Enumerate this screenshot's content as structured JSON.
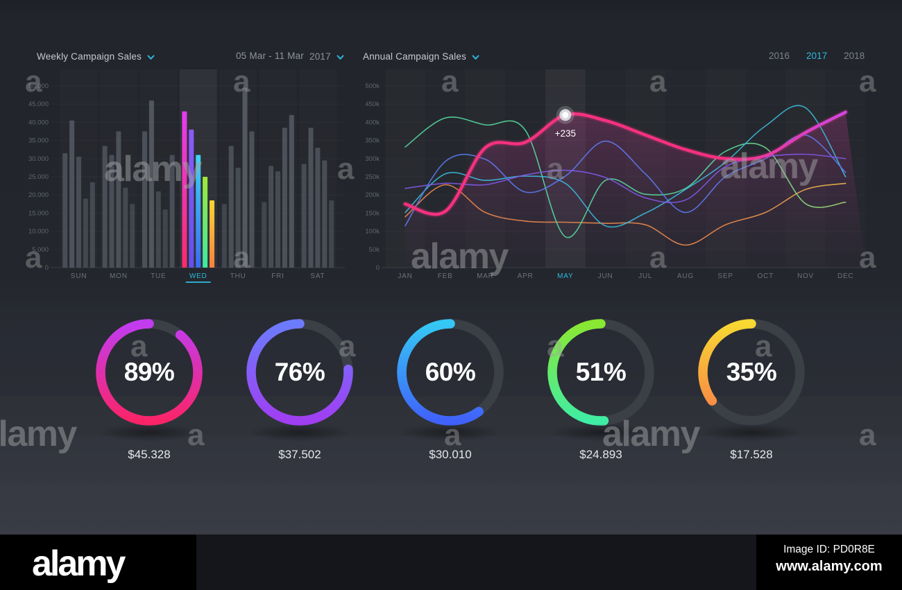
{
  "accent": "#2fb9e0",
  "controls": {
    "date_range": "05 Mar - 11 Mar",
    "year": "2017",
    "years": [
      "2016",
      "2017",
      "2018"
    ],
    "active_year": "2017"
  },
  "chart_data": [
    {
      "type": "bar",
      "title": "Weekly Campaign Sales",
      "categories": [
        "SUN",
        "MON",
        "TUE",
        "WED",
        "THU",
        "FRI",
        "SAT"
      ],
      "highlight_category": "WED",
      "ylim": [
        0,
        50000
      ],
      "yticks": [
        "50.000",
        "45.000",
        "40.000",
        "35.000",
        "30.000",
        "25.000",
        "20.000",
        "15.000",
        "10.000",
        "5.000",
        "0"
      ],
      "grid": true,
      "bar_color": "#5b606a",
      "values": [
        [
          31500,
          40500,
          30500,
          19000,
          23500
        ],
        [
          33500,
          31000,
          37500,
          22000,
          17500
        ],
        [
          37500,
          46000,
          21000,
          16000,
          31000
        ],
        [
          43000,
          38000,
          31000,
          25000,
          18500
        ],
        [
          17500,
          33500,
          27500,
          49500,
          37500
        ],
        [
          18000,
          28000,
          26500,
          38500,
          42000
        ],
        [
          28500,
          38500,
          33000,
          29500,
          18500
        ]
      ],
      "highlight_bar_gradients": [
        [
          "#e43df0",
          "#fa2b6e"
        ],
        [
          "#8e5bf8",
          "#6350ee"
        ],
        [
          "#3fd4f2",
          "#3a6cf2"
        ],
        [
          "#9fe838",
          "#3ce9a2"
        ],
        [
          "#f8d534",
          "#f8813f"
        ]
      ]
    },
    {
      "type": "line",
      "title": "Annual Campaign Sales",
      "x": [
        "JAN",
        "FEB",
        "MAR",
        "APR",
        "MAY",
        "JUN",
        "JUL",
        "AUG",
        "SEP",
        "OCT",
        "NOV",
        "DEC"
      ],
      "highlight_x": "MAY",
      "ylim": [
        0,
        500000
      ],
      "yticks": [
        "500k",
        "450k",
        "400k",
        "350k",
        "300k",
        "250k",
        "200k",
        "150k",
        "100k",
        "50k",
        "0"
      ],
      "values_unit": "thousands",
      "grid": true,
      "series": [
        {
          "name": "orange",
          "color": "#e8874c",
          "color_end": "#edc24e",
          "width": 1.6,
          "values": [
            140,
            228,
            152,
            128,
            125,
            122,
            118,
            62,
            118,
            152,
            215,
            232
          ]
        },
        {
          "name": "green",
          "color": "#55d89e",
          "color_end": "#b2de6a",
          "width": 1.6,
          "values": [
            332,
            412,
            393,
            378,
            85,
            240,
            202,
            218,
            320,
            330,
            176,
            180
          ]
        },
        {
          "name": "cyan",
          "color": "#3cb9dc",
          "width": 1.6,
          "values": [
            152,
            258,
            240,
            252,
            232,
            115,
            150,
            215,
            290,
            390,
            440,
            250
          ]
        },
        {
          "name": "blue",
          "color": "#5d7bef",
          "width": 1.6,
          "values": [
            115,
            292,
            298,
            208,
            252,
            348,
            258,
            152,
            250,
            300,
            365,
            262
          ]
        },
        {
          "name": "purple",
          "color": "#8059e8",
          "width": 1.6,
          "values": [
            218,
            232,
            228,
            255,
            268,
            248,
            192,
            186,
            278,
            305,
            312,
            300
          ]
        },
        {
          "name": "primary",
          "color": "#f5317f",
          "color_end": "#c94af2",
          "width": 4.5,
          "area": true,
          "values": [
            175,
            155,
            330,
            345,
            420,
            405,
            365,
            325,
            300,
            308,
            372,
            428
          ]
        }
      ],
      "marker": {
        "x": "MAY",
        "series": "primary",
        "value_k": 420,
        "label": "+235"
      }
    },
    {
      "type": "donut",
      "track_color": "#3b3f46",
      "items": [
        {
          "percent": 89,
          "percent_label": "89%",
          "amount": "$45.328",
          "color_start": "#c13cf0",
          "color_end": "#fb2468"
        },
        {
          "percent": 76,
          "percent_label": "76%",
          "amount": "$37.502",
          "color_start": "#6b7cfd",
          "color_end": "#a03ef2"
        },
        {
          "percent": 60,
          "percent_label": "60%",
          "amount": "$30.010",
          "color_start": "#35c8f5",
          "color_end": "#4062fa"
        },
        {
          "percent": 51,
          "percent_label": "51%",
          "amount": "$24.893",
          "color_start": "#8ae832",
          "color_end": "#40eda4"
        },
        {
          "percent": 35,
          "percent_label": "35%",
          "amount": "$17.528",
          "color_start": "#f8d832",
          "color_end": "#f87e48"
        }
      ]
    }
  ],
  "watermark": {
    "logo": "alamy",
    "letter": "a"
  },
  "footer": {
    "logo": "alamy",
    "image_id": "Image ID: PD0R8E",
    "website": "www.alamy.com"
  }
}
